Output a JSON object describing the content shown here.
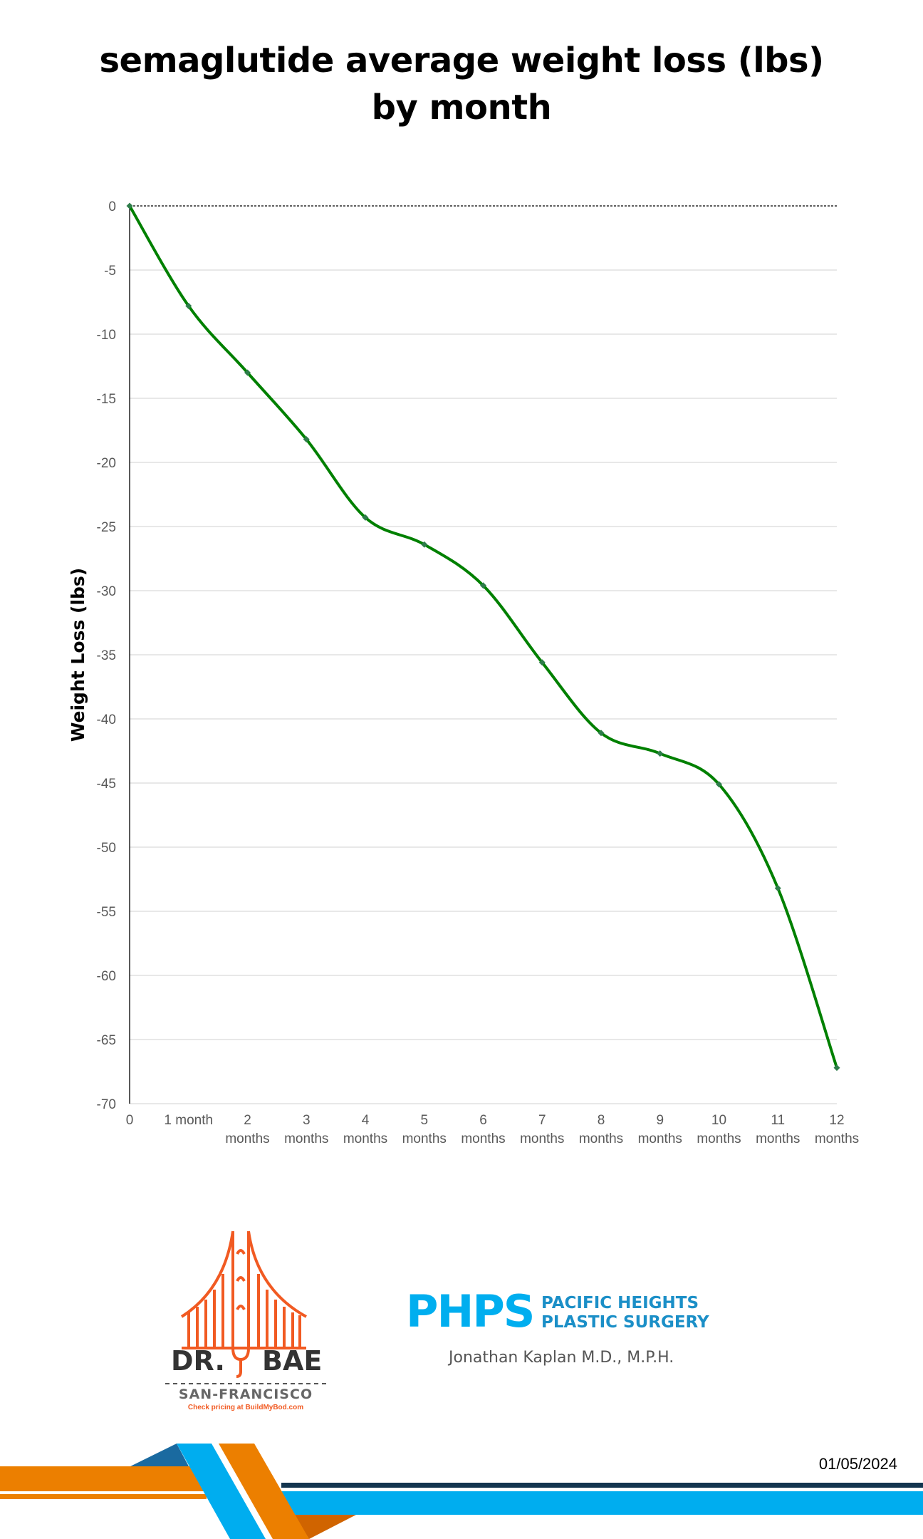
{
  "title": {
    "line1": "semaglutide average weight loss (lbs)",
    "line2": "by month"
  },
  "chart_data": {
    "type": "line",
    "title": "semaglutide average weight loss (lbs) by month",
    "xlabel": "",
    "ylabel": "Weight Loss (lbs)",
    "categories": [
      "0",
      "1 month",
      "2 months",
      "3 months",
      "4 months",
      "5 months",
      "6 months",
      "7 months",
      "8 months",
      "9 months",
      "10 months",
      "11 months",
      "12 months"
    ],
    "series": [
      {
        "name": "Average weight loss (lbs)",
        "values": [
          0,
          -7.8,
          -13.0,
          -18.2,
          -24.3,
          -26.4,
          -29.6,
          -35.6,
          -41.1,
          -42.7,
          -45.1,
          -53.2,
          -67.2
        ],
        "color": "#008000",
        "smooth": true,
        "marker": "diamond"
      }
    ],
    "ylim": [
      -70,
      0
    ],
    "yticks": [
      0,
      -5,
      -10,
      -15,
      -20,
      -25,
      -30,
      -35,
      -40,
      -45,
      -50,
      -55,
      -60,
      -65,
      -70
    ],
    "grid": true,
    "legend": "none",
    "zero_line": "dashed"
  },
  "x_tick_labels": [
    {
      "line1": "0",
      "line2": ""
    },
    {
      "line1": "1 month",
      "line2": ""
    },
    {
      "line1": "2",
      "line2": "months"
    },
    {
      "line1": "3",
      "line2": "months"
    },
    {
      "line1": "4",
      "line2": "months"
    },
    {
      "line1": "5",
      "line2": "months"
    },
    {
      "line1": "6",
      "line2": "months"
    },
    {
      "line1": "7",
      "line2": "months"
    },
    {
      "line1": "8",
      "line2": "months"
    },
    {
      "line1": "9",
      "line2": "months"
    },
    {
      "line1": "10",
      "line2": "months"
    },
    {
      "line1": "11",
      "line2": "months"
    },
    {
      "line1": "12",
      "line2": "months"
    }
  ],
  "logos": {
    "drbae": {
      "name_left": "DR.",
      "name_right": "BAE",
      "city": "SAN-FRANCISCO",
      "tagline": "Check pricing at BuildMyBod.com",
      "color": "#f15a22"
    },
    "phps": {
      "abbr": "PHPS",
      "line1": "PACIFIC HEIGHTS",
      "line2": "PLASTIC SURGERY",
      "doctor": "Jonathan Kaplan M.D., M.P.H.",
      "abbr_color": "#00aeef",
      "text_color": "#1b8fc7"
    }
  },
  "footer": {
    "date": "01/05/2024"
  },
  "colors": {
    "line": "#008000",
    "marker": "#2e7d4a",
    "grid": "#d9d9d9",
    "orange": "#ec7f00",
    "cyan": "#00adef",
    "navy": "#13354f",
    "steel_blue": "#1a6aa0",
    "dark_orange": "#d06400"
  }
}
